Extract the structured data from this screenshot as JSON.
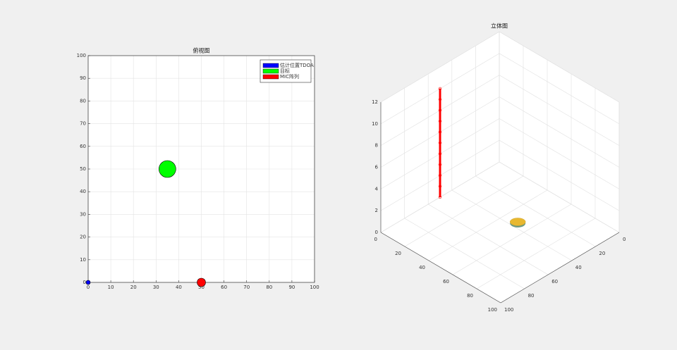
{
  "chart_data": [
    {
      "type": "scatter",
      "title": "俯视图",
      "xlim": [
        0,
        100
      ],
      "ylim": [
        0,
        100
      ],
      "xticks": [
        0,
        10,
        20,
        30,
        40,
        50,
        60,
        70,
        80,
        90,
        100
      ],
      "yticks": [
        0,
        10,
        20,
        30,
        40,
        50,
        60,
        70,
        80,
        90,
        100
      ],
      "grid": true,
      "legend": "northeast",
      "series": [
        {
          "name": "估计位置TDOA",
          "color": "#0000ff",
          "marker_size": 3,
          "x": [
            0
          ],
          "y": [
            0
          ]
        },
        {
          "name": "目标",
          "color": "#00ff00",
          "marker_size": 12,
          "x": [
            35
          ],
          "y": [
            50
          ]
        },
        {
          "name": "MIC阵列",
          "color": "#ff0000",
          "marker_size": 6,
          "x": [
            50
          ],
          "y": [
            0
          ]
        }
      ]
    },
    {
      "type": "scatter3d",
      "title": "立体图",
      "xlim": [
        0,
        100
      ],
      "ylim": [
        0,
        100
      ],
      "zlim": [
        0,
        12
      ],
      "xticks": [
        0,
        20,
        40,
        60,
        80,
        100
      ],
      "yticks": [
        0,
        20,
        40,
        60,
        80,
        100
      ],
      "zticks": [
        0,
        2,
        4,
        6,
        8,
        10,
        12
      ],
      "grid": true,
      "series": [
        {
          "color": "#ff0000",
          "x": [
            50,
            50,
            50,
            50,
            50,
            50,
            50,
            50,
            50,
            50,
            50
          ],
          "y": [
            0,
            0,
            0,
            0,
            0,
            0,
            0,
            0,
            0,
            0,
            0
          ],
          "z": [
            0,
            1,
            2,
            3,
            4,
            5,
            6,
            7,
            8,
            9,
            10
          ]
        },
        {
          "color": "#e8b830",
          "x": [
            35
          ],
          "y": [
            50
          ],
          "z": [
            0
          ]
        }
      ]
    }
  ]
}
